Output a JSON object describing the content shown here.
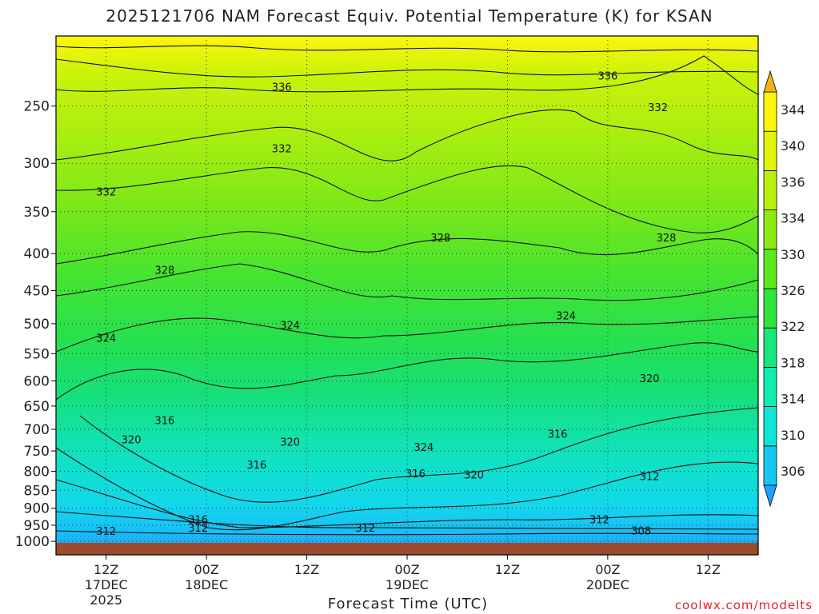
{
  "chart_data": {
    "type": "heatmap",
    "title": "2025121706 NAM Forecast Equiv. Potential Temperature (K) for KSAN",
    "xlabel": "Forecast Time (UTC)",
    "ylabel": "",
    "y_axis_ticks": [
      250,
      300,
      350,
      400,
      450,
      500,
      550,
      600,
      650,
      700,
      750,
      800,
      850,
      900,
      950,
      1000
    ],
    "y_range": [
      200,
      1010
    ],
    "x_axis_ticks": [
      {
        "label": "12Z",
        "sub": "17DEC",
        "sub2": "2025",
        "hour": 6
      },
      {
        "label": "00Z",
        "sub": "18DEC",
        "sub2": "",
        "hour": 18
      },
      {
        "label": "12Z",
        "sub": "",
        "sub2": "",
        "hour": 30
      },
      {
        "label": "00Z",
        "sub": "19DEC",
        "sub2": "",
        "hour": 42
      },
      {
        "label": "12Z",
        "sub": "",
        "sub2": "",
        "hour": 54
      },
      {
        "label": "00Z",
        "sub": "20DEC",
        "sub2": "",
        "hour": 66
      },
      {
        "label": "12Z",
        "sub": "",
        "sub2": "",
        "hour": 78
      }
    ],
    "x_range_hours": [
      0,
      84
    ],
    "colorbar_levels": [
      306,
      310,
      314,
      318,
      322,
      326,
      330,
      334,
      336,
      340,
      344
    ],
    "colorbar_colors": [
      "#1fa0ff",
      "#15c8f0",
      "#10e6d8",
      "#12ecb0",
      "#17e57d",
      "#2ee43d",
      "#5ae81e",
      "#8cea12",
      "#b8ef0c",
      "#e0f40a",
      "#fbf60a",
      "#f0b414"
    ],
    "contour_labels": [
      {
        "text": "336",
        "hour": 27,
        "p": 235
      },
      {
        "text": "336",
        "hour": 66,
        "p": 227
      },
      {
        "text": "332",
        "hour": 72,
        "p": 251
      },
      {
        "text": "332",
        "hour": 27,
        "p": 286
      },
      {
        "text": "332",
        "hour": 6,
        "p": 328
      },
      {
        "text": "328",
        "hour": 46,
        "p": 380
      },
      {
        "text": "328",
        "hour": 73,
        "p": 380
      },
      {
        "text": "328",
        "hour": 13,
        "p": 421
      },
      {
        "text": "324",
        "hour": 28,
        "p": 502
      },
      {
        "text": "324",
        "hour": 61,
        "p": 487
      },
      {
        "text": "324",
        "hour": 6,
        "p": 523
      },
      {
        "text": "320",
        "hour": 71,
        "p": 595
      },
      {
        "text": "320",
        "hour": 9,
        "p": 723
      },
      {
        "text": "320",
        "hour": 28,
        "p": 728
      },
      {
        "text": "320",
        "hour": 50,
        "p": 808
      },
      {
        "text": "324",
        "hour": 44,
        "p": 740
      },
      {
        "text": "316",
        "hour": 13,
        "p": 680
      },
      {
        "text": "316",
        "hour": 24,
        "p": 783
      },
      {
        "text": "316",
        "hour": 43,
        "p": 805
      },
      {
        "text": "316",
        "hour": 60,
        "p": 710
      },
      {
        "text": "316",
        "hour": 17,
        "p": 932
      },
      {
        "text": "312",
        "hour": 71,
        "p": 812
      },
      {
        "text": "312",
        "hour": 65,
        "p": 932
      },
      {
        "text": "312",
        "hour": 17,
        "p": 958
      },
      {
        "text": "312",
        "hour": 6,
        "p": 967
      },
      {
        "text": "312",
        "hour": 37,
        "p": 958
      },
      {
        "text": "308",
        "hour": 70,
        "p": 966
      }
    ]
  },
  "credit": "coolwx.com/modelts"
}
